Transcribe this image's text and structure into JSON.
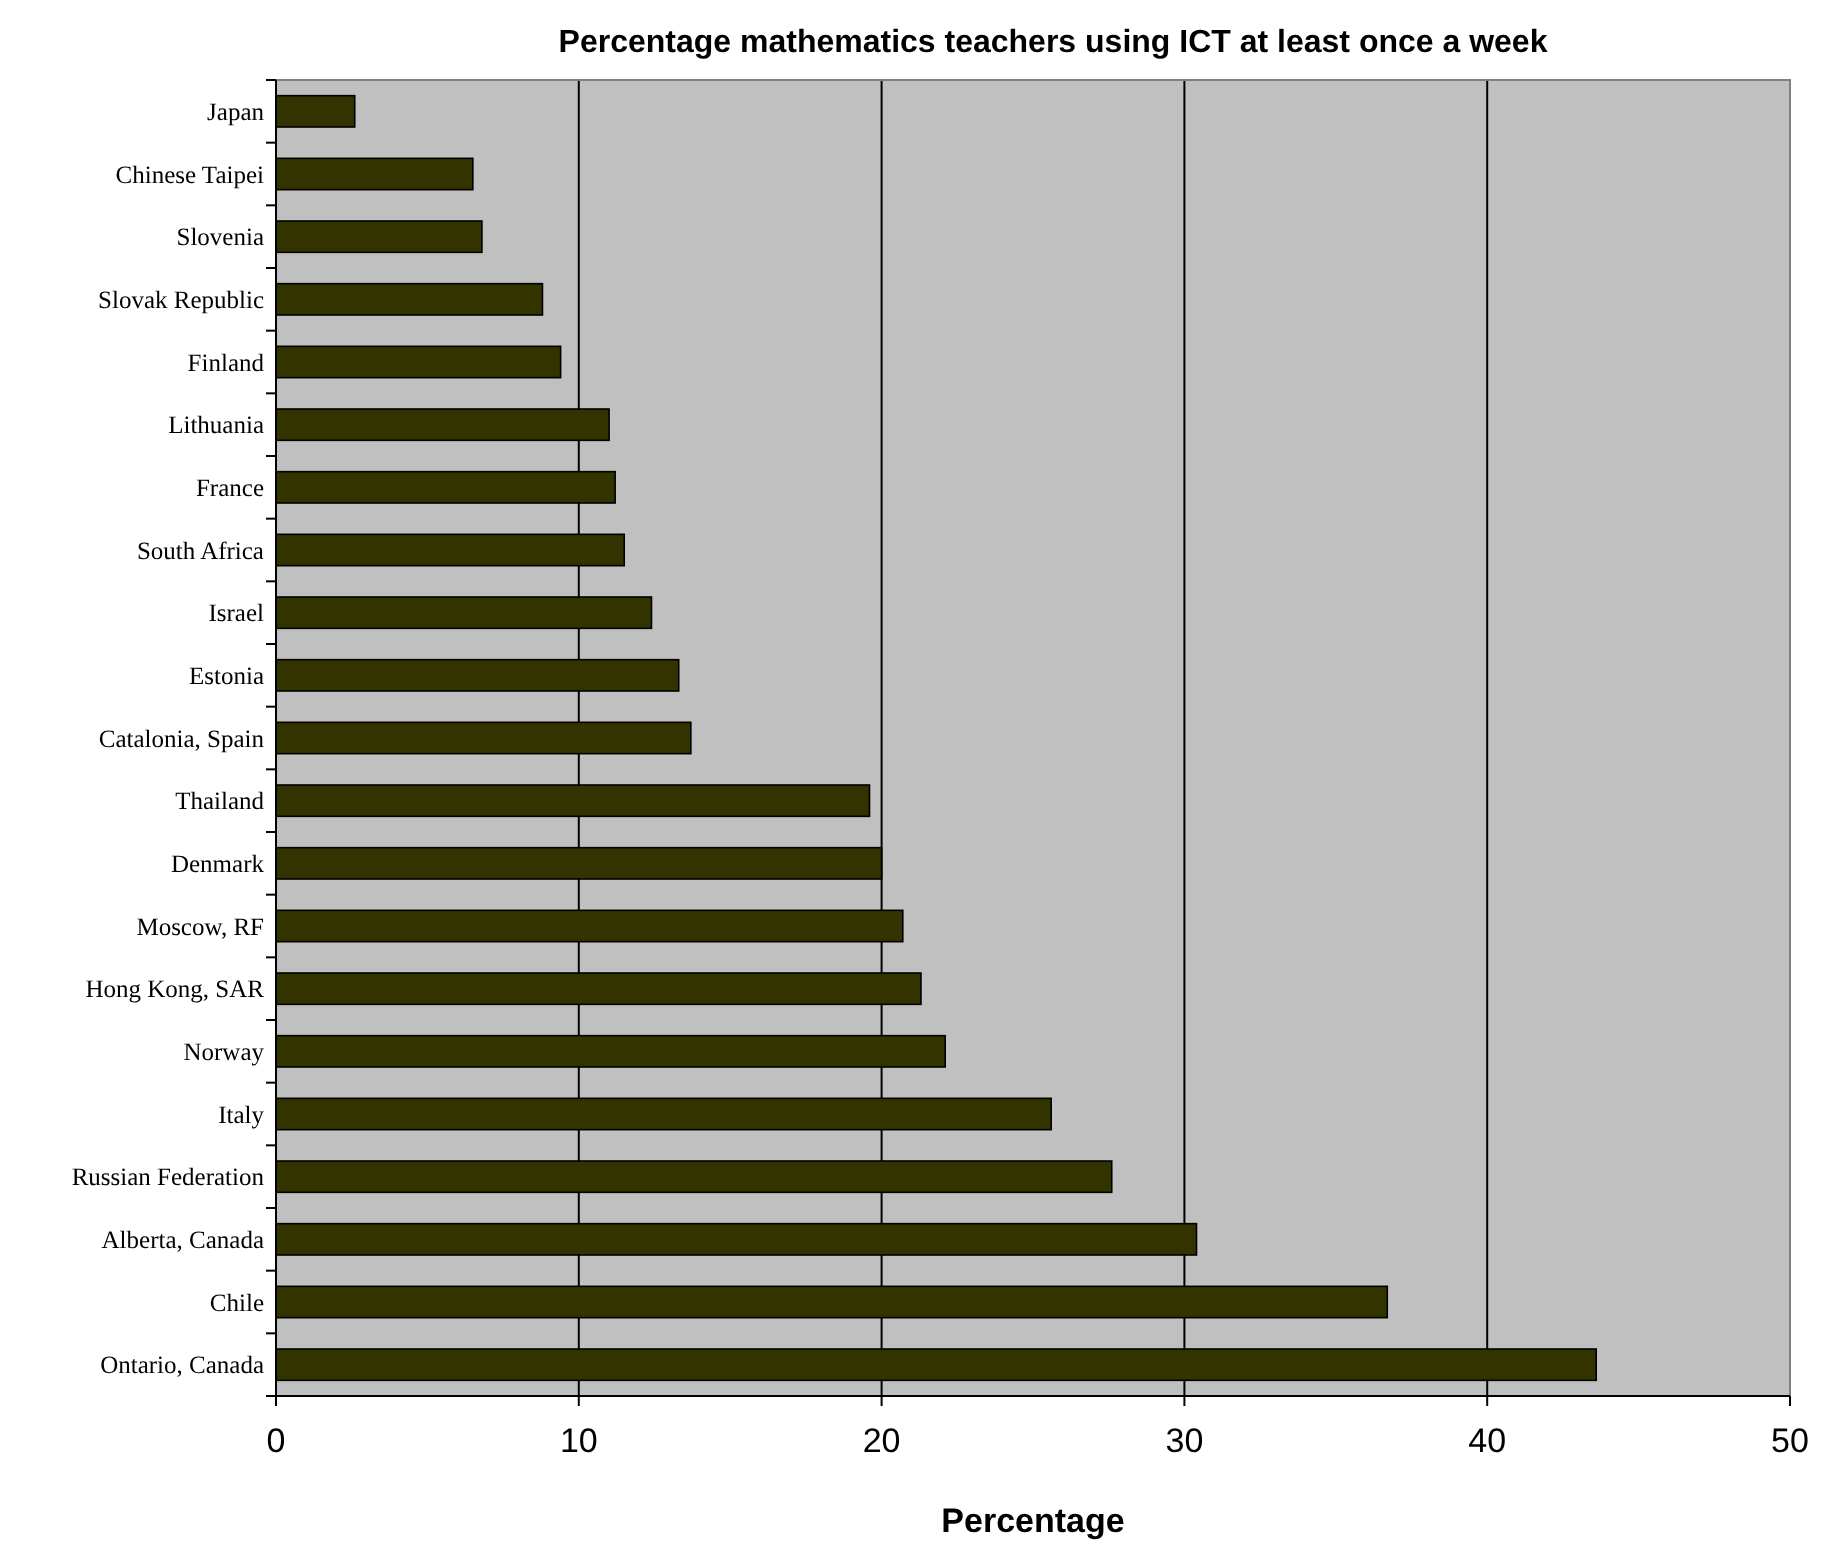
{
  "chart_data": {
    "type": "bar",
    "orientation": "horizontal",
    "title": "Percentage mathematics teachers using ICT at least once a week",
    "xlabel": "Percentage",
    "categories": [
      "Japan",
      "Chinese Taipei",
      "Slovenia",
      "Slovak Republic",
      "Finland",
      "Lithuania",
      "France",
      "South Africa",
      "Israel",
      "Estonia",
      "Catalonia, Spain",
      "Thailand",
      "Denmark",
      "Moscow, RF",
      "Hong Kong, SAR",
      "Norway",
      "Italy",
      "Russian Federation",
      "Alberta, Canada",
      "Chile",
      "Ontario, Canada"
    ],
    "values": [
      2.6,
      6.5,
      6.8,
      8.8,
      9.4,
      11.0,
      11.2,
      11.5,
      12.4,
      13.3,
      13.7,
      19.6,
      20.0,
      20.7,
      21.3,
      22.1,
      25.6,
      27.6,
      30.4,
      36.7,
      43.6
    ],
    "color": "#333300",
    "xlim": [
      0,
      50
    ],
    "xticks": [
      0,
      10,
      20,
      30,
      40,
      50
    ],
    "grid": "x"
  }
}
